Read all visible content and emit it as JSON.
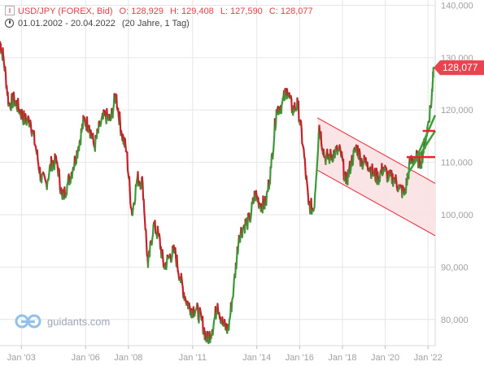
{
  "header": {
    "instrument": "USD/JPY (FOREX, Bid)",
    "open": "O: 128,929",
    "high": "H: 129,408",
    "low": "L: 127,590",
    "close": "C: 128,077",
    "period": "01.01.2002 - 20.04.2022",
    "interval": "(20 Jahre, 1 Tag)"
  },
  "watermark": "guidants.com",
  "colors": {
    "up": "#3a9a3a",
    "down": "#c8202a",
    "channel_fill": "#fbe1e3",
    "channel_line": "#e52631",
    "price_tag": "#e8434f",
    "grid": "#e6e6e6",
    "axis_text": "#a0a0a0"
  },
  "chart_data": {
    "type": "line",
    "title": "USD/JPY (FOREX, Bid)",
    "xlabel": "",
    "ylabel": "",
    "grid": true,
    "y_axis_side": "right",
    "ylim": [
      75,
      141
    ],
    "xlim": [
      "2002-01",
      "2022-05"
    ],
    "y_ticks": [
      {
        "value": 80,
        "label": "80,000"
      },
      {
        "value": 90,
        "label": "90,000"
      },
      {
        "value": 100,
        "label": "100,000"
      },
      {
        "value": 110,
        "label": "110,000"
      },
      {
        "value": 120,
        "label": "120,000"
      },
      {
        "value": 130,
        "label": "130,000"
      },
      {
        "value": 140,
        "label": "140,000"
      }
    ],
    "x_ticks": [
      {
        "value": "2003-01",
        "label": "Jan '03"
      },
      {
        "value": "2006-01",
        "label": "Jan '06"
      },
      {
        "value": "2008-01",
        "label": "Jan '08"
      },
      {
        "value": "2011-01",
        "label": "Jan '11"
      },
      {
        "value": "2014-01",
        "label": "Jan '14"
      },
      {
        "value": "2016-01",
        "label": "Jan '16"
      },
      {
        "value": "2018-01",
        "label": "Jan '18"
      },
      {
        "value": "2020-01",
        "label": "Jan '20"
      },
      {
        "value": "2022-01",
        "label": "Jan '22"
      }
    ],
    "last_price": {
      "value": 128.077,
      "label": "128,077"
    },
    "series": [
      {
        "x": [
          "2002-01",
          "2002-03",
          "2002-06",
          "2002-09",
          "2002-12",
          "2003-03",
          "2003-06",
          "2003-09",
          "2003-12",
          "2004-03",
          "2004-06",
          "2004-09",
          "2004-12",
          "2005-03",
          "2005-06",
          "2005-09",
          "2005-12",
          "2006-03",
          "2006-06",
          "2006-09",
          "2006-12",
          "2007-03",
          "2007-06",
          "2007-09",
          "2007-12",
          "2008-03",
          "2008-06",
          "2008-09",
          "2008-12",
          "2009-03",
          "2009-06",
          "2009-09",
          "2009-12",
          "2010-03",
          "2010-06",
          "2010-09",
          "2010-12",
          "2011-03",
          "2011-06",
          "2011-09",
          "2011-12",
          "2012-03",
          "2012-06",
          "2012-09",
          "2012-12",
          "2013-03",
          "2013-06",
          "2013-09",
          "2013-12",
          "2014-03",
          "2014-06",
          "2014-09",
          "2014-12",
          "2015-03",
          "2015-06",
          "2015-09",
          "2015-12",
          "2016-03",
          "2016-06",
          "2016-09",
          "2016-12",
          "2017-03",
          "2017-06",
          "2017-09",
          "2017-12",
          "2018-03",
          "2018-06",
          "2018-09",
          "2018-12",
          "2019-03",
          "2019-06",
          "2019-09",
          "2019-12",
          "2020-03",
          "2020-06",
          "2020-09",
          "2020-12",
          "2021-03",
          "2021-06",
          "2021-09",
          "2021-12",
          "2022-03",
          "2022-04"
        ],
        "values": [
          133,
          130,
          121,
          122,
          120,
          118,
          118,
          113,
          107,
          106,
          110,
          110,
          103,
          106,
          109,
          113,
          118,
          117,
          113,
          117,
          119,
          118,
          123,
          116,
          112,
          100,
          107,
          106,
          90,
          98,
          96,
          90,
          92,
          93,
          88,
          84,
          82,
          82,
          80,
          76,
          78,
          83,
          79,
          78,
          86,
          96,
          98,
          99,
          104,
          102,
          102,
          109,
          120,
          121,
          124,
          120,
          121,
          113,
          102,
          101,
          117,
          111,
          111,
          112,
          112,
          106,
          110,
          113,
          110,
          110,
          108,
          107,
          109,
          107,
          107,
          105,
          104,
          110,
          111,
          110,
          115,
          122,
          128.077
        ]
      }
    ],
    "annotations": [
      {
        "type": "channel",
        "upper": [
          [
            "2016-11",
            118.5
          ],
          [
            "2022-05",
            106
          ]
        ],
        "lower": [
          [
            "2016-11",
            108.5
          ],
          [
            "2022-05",
            96
          ]
        ]
      },
      {
        "type": "trendline",
        "color": "green",
        "points": [
          [
            "2021-01",
            107.5
          ],
          [
            "2022-05",
            116
          ]
        ]
      },
      {
        "type": "trendline",
        "color": "green",
        "points": [
          [
            "2021-06",
            110.5
          ],
          [
            "2022-05",
            119
          ]
        ]
      },
      {
        "type": "level",
        "color": "red",
        "value": 111,
        "from": "2021-01",
        "to": "2022-05"
      },
      {
        "type": "level",
        "color": "red",
        "value": 116,
        "from": "2021-10",
        "to": "2022-05"
      }
    ]
  }
}
